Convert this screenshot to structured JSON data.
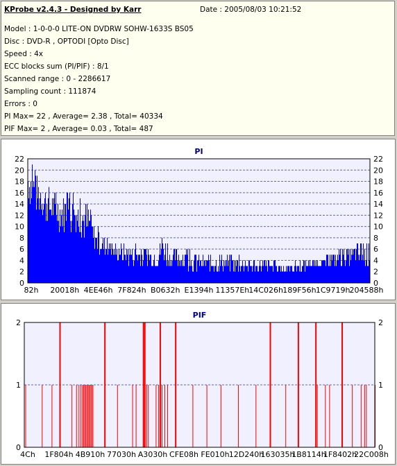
{
  "header": {
    "title": "KProbe v2.4.3 - Designed by Karr",
    "date": "Date : 2005/08/03 10:21:52"
  },
  "info_lines": [
    "Model : 1-0-0-0 LITE-ON DVDRW SOHW-1633S BS05",
    "Disc : DVD-R , OPTODI [Opto Disc]",
    "Speed : 4x",
    "ECC blocks sum (PI/PIF) : 8/1",
    "Scanned range : 0 - 2286617",
    "Sampling count : 111874",
    "Errors : 0",
    "PI Max= 22 , Average= 2.38 , Total= 40334",
    "PIF Max= 2 , Average= 0.03 , Total= 487"
  ],
  "colors": {
    "pi": "#0000ff",
    "pif": "#ff0000",
    "plot_bg": "#f0f0ff",
    "grid": "#6666aa",
    "title": "#000080"
  },
  "chart_data": [
    {
      "type": "bar",
      "title": "PI",
      "ylim": [
        0,
        22
      ],
      "yticks": [
        "0",
        "2",
        "4",
        "6",
        "8",
        "10",
        "12",
        "14",
        "16",
        "18",
        "20",
        "22"
      ],
      "xticks": [
        "82h",
        "20018h",
        "4EE46h",
        "7F824h",
        "B0632h",
        "E1394h",
        "11357Eh",
        "14C026h",
        "189F56h",
        "1C9719h",
        "204588h"
      ],
      "grid": true,
      "envelope": [
        [
          0,
          22
        ],
        [
          0.008,
          21
        ],
        [
          0.02,
          20
        ],
        [
          0.05,
          18
        ],
        [
          0.08,
          16
        ],
        [
          0.12,
          16
        ],
        [
          0.16,
          15
        ],
        [
          0.18,
          14
        ],
        [
          0.19,
          11
        ],
        [
          0.21,
          9
        ],
        [
          0.25,
          7
        ],
        [
          0.3,
          7
        ],
        [
          0.35,
          6
        ],
        [
          0.38,
          6
        ],
        [
          0.395,
          10
        ],
        [
          0.41,
          6
        ],
        [
          0.45,
          6
        ],
        [
          0.5,
          5
        ],
        [
          0.55,
          5
        ],
        [
          0.6,
          5
        ],
        [
          0.65,
          4
        ],
        [
          0.7,
          4
        ],
        [
          0.75,
          3
        ],
        [
          0.8,
          4
        ],
        [
          0.85,
          4
        ],
        [
          0.88,
          5
        ],
        [
          0.92,
          6
        ],
        [
          0.96,
          7
        ],
        [
          1.0,
          7
        ]
      ],
      "baseline": [
        [
          0,
          14
        ],
        [
          0.03,
          12
        ],
        [
          0.06,
          10
        ],
        [
          0.1,
          9
        ],
        [
          0.14,
          9
        ],
        [
          0.17,
          7
        ],
        [
          0.2,
          5
        ],
        [
          0.25,
          4
        ],
        [
          0.3,
          3
        ],
        [
          0.4,
          3
        ],
        [
          0.5,
          2
        ],
        [
          0.6,
          2
        ],
        [
          0.7,
          2
        ],
        [
          0.8,
          2
        ],
        [
          0.85,
          3
        ],
        [
          0.9,
          3
        ],
        [
          0.95,
          3
        ],
        [
          1.0,
          3
        ]
      ]
    },
    {
      "type": "bar",
      "title": "PIF",
      "ylim": [
        0,
        2
      ],
      "yticks": [
        "0",
        "1",
        "2"
      ],
      "xticks": [
        "4Ch",
        "1F804h",
        "4B910h",
        "77030h",
        "A3030h",
        "CFE08h",
        "FE010h",
        "12D240h",
        "163035h",
        "1B8114h",
        "1F8402h",
        "22C008h"
      ],
      "grid": true,
      "spikes": [
        [
          0.003,
          1
        ],
        [
          0.05,
          1
        ],
        [
          0.078,
          1
        ],
        [
          0.1,
          2
        ],
        [
          0.135,
          1
        ],
        [
          0.148,
          1
        ],
        [
          0.155,
          1
        ],
        [
          0.16,
          1
        ],
        [
          0.165,
          1
        ],
        [
          0.168,
          1
        ],
        [
          0.171,
          1
        ],
        [
          0.174,
          1
        ],
        [
          0.177,
          1
        ],
        [
          0.18,
          1
        ],
        [
          0.183,
          1
        ],
        [
          0.186,
          1
        ],
        [
          0.189,
          1
        ],
        [
          0.192,
          1
        ],
        [
          0.195,
          1
        ],
        [
          0.228,
          2
        ],
        [
          0.265,
          1
        ],
        [
          0.308,
          1
        ],
        [
          0.318,
          1
        ],
        [
          0.338,
          2
        ],
        [
          0.342,
          2
        ],
        [
          0.348,
          1
        ],
        [
          0.353,
          1
        ],
        [
          0.375,
          1
        ],
        [
          0.382,
          1
        ],
        [
          0.386,
          2
        ],
        [
          0.392,
          1
        ],
        [
          0.4,
          1
        ],
        [
          0.408,
          1
        ],
        [
          0.43,
          2
        ],
        [
          0.48,
          1
        ],
        [
          0.52,
          1
        ],
        [
          0.56,
          1
        ],
        [
          0.61,
          1
        ],
        [
          0.66,
          1
        ],
        [
          0.7,
          2
        ],
        [
          0.745,
          1
        ],
        [
          0.78,
          2
        ],
        [
          0.83,
          2
        ],
        [
          0.835,
          1
        ],
        [
          0.858,
          1
        ],
        [
          0.87,
          1
        ],
        [
          0.905,
          2
        ],
        [
          0.935,
          1
        ],
        [
          0.96,
          1
        ],
        [
          0.97,
          1
        ],
        [
          0.975,
          1
        ],
        [
          1.0,
          1
        ]
      ]
    }
  ]
}
